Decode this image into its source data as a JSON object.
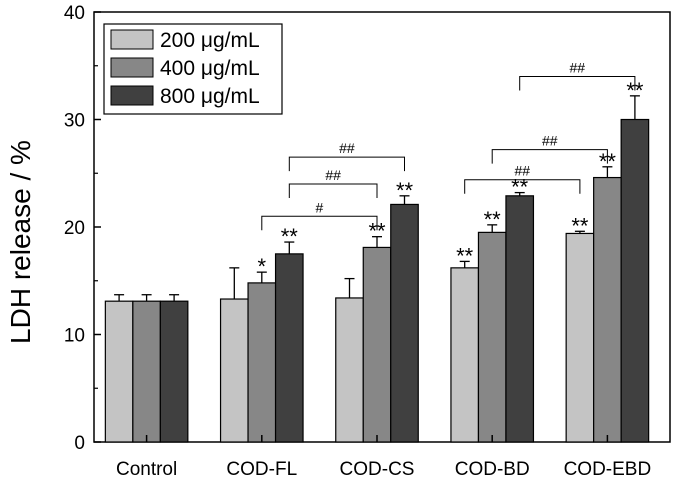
{
  "chart_data": {
    "type": "bar",
    "title": "",
    "xlabel": "",
    "ylabel": "LDH release / %",
    "ylim": [
      0,
      40
    ],
    "yticks": [
      0,
      10,
      20,
      30,
      40
    ],
    "ytick_labels": [
      "0",
      "10",
      "20",
      "30",
      "40"
    ],
    "categories": [
      "Control",
      "COD-FL",
      "COD-CS",
      "COD-BD",
      "COD-EBD"
    ],
    "series": [
      {
        "name": "200 μg/mL",
        "color": "#c4c4c4",
        "values": [
          13.1,
          13.3,
          13.4,
          16.2,
          19.4
        ],
        "errors": [
          0.6,
          2.9,
          1.8,
          0.6,
          0.2
        ],
        "marks": [
          "",
          "",
          "",
          "**",
          "**"
        ]
      },
      {
        "name": "400 μg/mL",
        "color": "#878787",
        "values": [
          13.1,
          14.8,
          18.1,
          19.5,
          24.6
        ],
        "errors": [
          0.6,
          1.0,
          1.0,
          0.7,
          1.0
        ],
        "marks": [
          "",
          "*",
          "**",
          "**",
          "**"
        ]
      },
      {
        "name": "800 μg/mL",
        "color": "#404040",
        "values": [
          13.1,
          17.5,
          22.1,
          22.9,
          30.0
        ],
        "errors": [
          0.6,
          1.1,
          0.8,
          0.3,
          2.2
        ],
        "marks": [
          "",
          "**",
          "**",
          "**",
          "**"
        ]
      }
    ],
    "comparisons": [
      {
        "label": "#",
        "from": [
          "COD-FL",
          "400 μg/mL"
        ],
        "to": [
          "COD-CS",
          "400 μg/mL"
        ],
        "y": 21.0
      },
      {
        "label": "##",
        "from": [
          "COD-FL",
          "800 μg/mL"
        ],
        "to": [
          "COD-CS",
          "400 μg/mL"
        ],
        "y": 24.0
      },
      {
        "label": "##",
        "from": [
          "COD-FL",
          "800 μg/mL"
        ],
        "to": [
          "COD-CS",
          "800 μg/mL"
        ],
        "y": 26.5
      },
      {
        "label": "##",
        "from": [
          "COD-BD",
          "200 μg/mL"
        ],
        "to": [
          "COD-EBD",
          "200 μg/mL"
        ],
        "y": 24.4
      },
      {
        "label": "##",
        "from": [
          "COD-BD",
          "400 μg/mL"
        ],
        "to": [
          "COD-EBD",
          "400 μg/mL"
        ],
        "y": 27.2
      },
      {
        "label": "##",
        "from": [
          "COD-BD",
          "800 μg/mL"
        ],
        "to": [
          "COD-EBD",
          "800 μg/mL"
        ],
        "y": 34.0
      }
    ],
    "legend": {
      "position": "top-left"
    }
  }
}
